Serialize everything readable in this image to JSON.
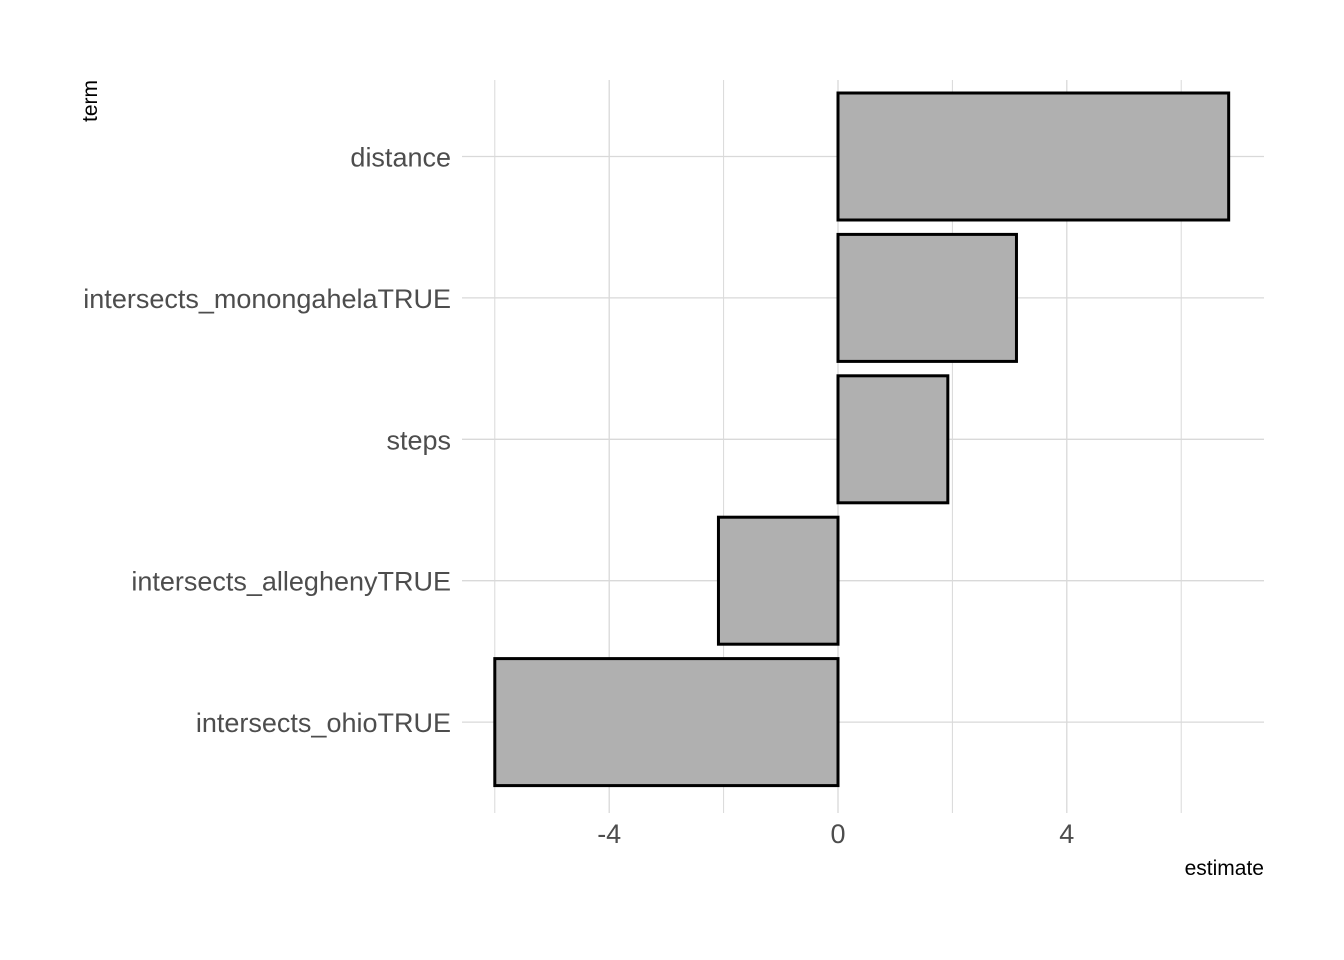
{
  "chart_data": {
    "type": "bar",
    "orientation": "horizontal",
    "title": "",
    "xlabel": "estimate",
    "ylabel": "term",
    "categories": [
      "distance",
      "intersects_monongahelaTRUE",
      "steps",
      "intersects_alleghenyTRUE",
      "intersects_ohioTRUE"
    ],
    "values": [
      6.83,
      3.12,
      1.92,
      -2.09,
      -6.0
    ],
    "xlim": [
      -6.3,
      7.5
    ],
    "x_ticks": [
      -4,
      0,
      4
    ],
    "x_ticks_labels": [
      "-4",
      "0",
      "4"
    ],
    "x_minor_gridlines": [
      -6,
      -2,
      2,
      6
    ],
    "grid": true,
    "legend": "none",
    "colors": {
      "bar_fill": "#b0b0b0",
      "bar_outline": "#000000",
      "grid": "#d9d9d9",
      "tick_label": "#4d4d4d"
    }
  }
}
